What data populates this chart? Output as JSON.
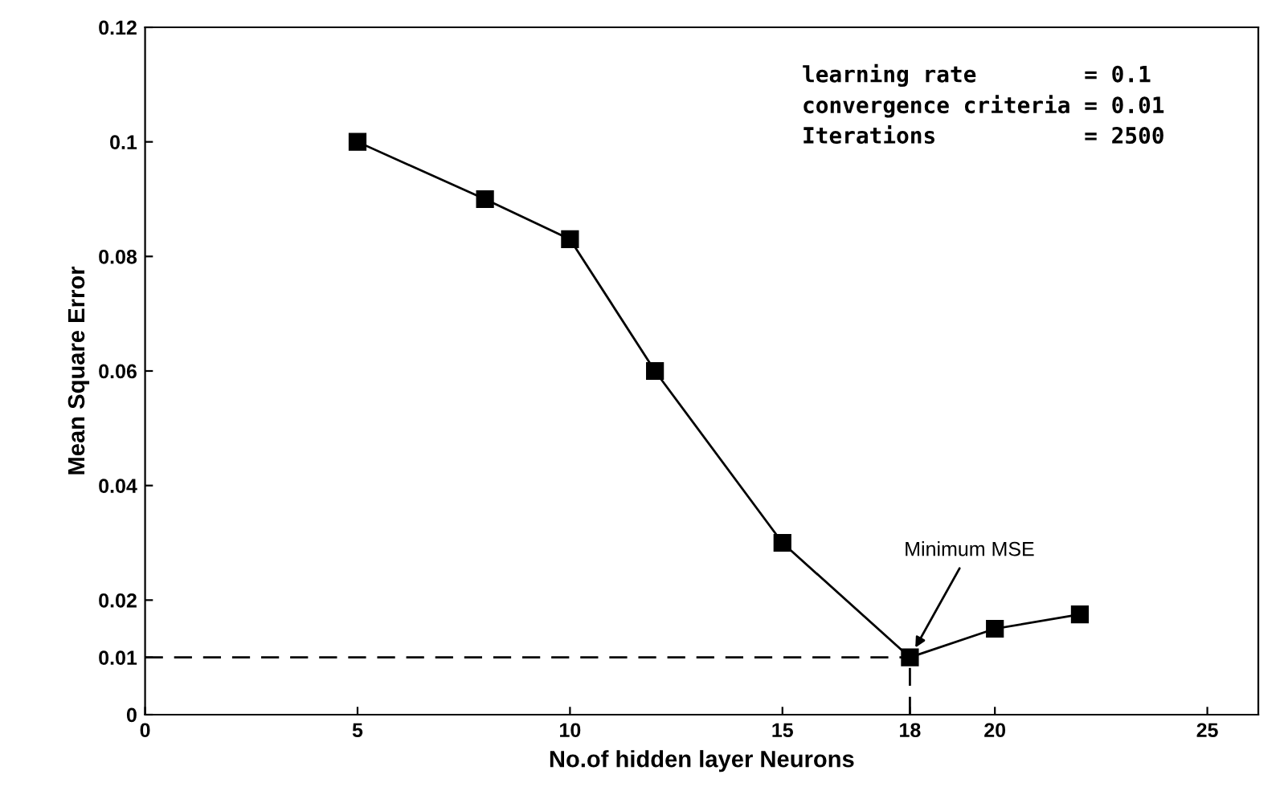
{
  "chart_data": {
    "type": "line",
    "xlabel": "No.of hidden layer Neurons",
    "ylabel": "Mean Square Error",
    "x": [
      5,
      8,
      10,
      12,
      15,
      18,
      20,
      22
    ],
    "series": [
      {
        "color": "#000000",
        "values": [
          0.1,
          0.09,
          0.083,
          0.06,
          0.03,
          0.01,
          0.015,
          0.0175
        ]
      }
    ],
    "marker": "square",
    "line_style": "solid",
    "xlim": [
      0,
      26.2
    ],
    "xticks": [
      0,
      5,
      10,
      15,
      18,
      20,
      25
    ],
    "ylim": [
      0,
      0.12
    ],
    "yticks": [
      0,
      0.01,
      0.02,
      0.04,
      0.06,
      0.08,
      0.1,
      0.12
    ],
    "ref_lines": [
      {
        "axis": "y",
        "value": 0.01,
        "line_style": "dashed"
      },
      {
        "axis": "x",
        "value": 18,
        "line_style": "dashed"
      }
    ],
    "annotations": [
      "learning rate        = 0.1",
      "convergence criteria = 0.01",
      "Iterations           = 2500",
      {
        "text": "Minimum MSE",
        "x": 18,
        "y": 0.01
      }
    ],
    "grid": false,
    "legend": false
  }
}
